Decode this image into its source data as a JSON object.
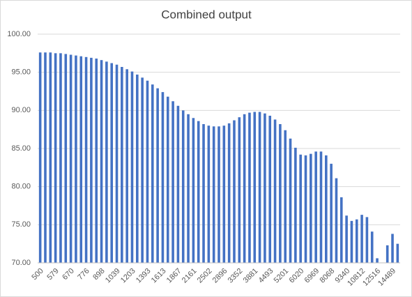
{
  "chart_data": {
    "type": "bar",
    "title": "Combined output",
    "color": "#4472c4",
    "grid": true,
    "ylim": [
      70,
      100
    ],
    "yticks": [
      {
        "value": 70,
        "label": "70.00"
      },
      {
        "value": 75,
        "label": "75.00"
      },
      {
        "value": 80,
        "label": "80.00"
      },
      {
        "value": 85,
        "label": "85.00"
      },
      {
        "value": 90,
        "label": "90.00"
      },
      {
        "value": 95,
        "label": "95.00"
      },
      {
        "value": 100,
        "label": "100.00"
      }
    ],
    "categories": [
      "500",
      null,
      null,
      "579",
      null,
      null,
      "670",
      null,
      null,
      "776",
      null,
      null,
      "898",
      null,
      null,
      "1039",
      null,
      null,
      "1203",
      null,
      null,
      "1393",
      null,
      null,
      "1613",
      null,
      null,
      "1867",
      null,
      null,
      "2161",
      null,
      null,
      "2502",
      null,
      null,
      "2896",
      null,
      null,
      "3352",
      null,
      null,
      "3881",
      null,
      null,
      "4493",
      null,
      null,
      "5201",
      null,
      null,
      "6020",
      null,
      null,
      "6969",
      null,
      null,
      "8068",
      null,
      null,
      "9340",
      null,
      null,
      "10812",
      null,
      null,
      "12516",
      null,
      null,
      "14489",
      null
    ],
    "values": [
      97.6,
      97.6,
      97.6,
      97.5,
      97.5,
      97.4,
      97.3,
      97.2,
      97.1,
      97.0,
      96.9,
      96.8,
      96.6,
      96.4,
      96.2,
      96.0,
      95.7,
      95.4,
      95.1,
      94.7,
      94.3,
      93.9,
      93.4,
      92.9,
      92.4,
      91.8,
      91.2,
      90.6,
      90.0,
      89.5,
      89.0,
      88.6,
      88.2,
      88.0,
      87.9,
      87.9,
      88.0,
      88.3,
      88.7,
      89.1,
      89.5,
      89.7,
      89.8,
      89.8,
      89.6,
      89.3,
      88.8,
      88.2,
      87.4,
      86.3,
      85.1,
      84.2,
      84.1,
      84.3,
      84.6,
      84.6,
      84.1,
      83.0,
      81.1,
      78.6,
      76.2,
      75.5,
      75.7,
      76.3,
      76.0,
      74.1,
      70.6,
      null,
      72.3,
      73.8,
      72.5
    ]
  }
}
